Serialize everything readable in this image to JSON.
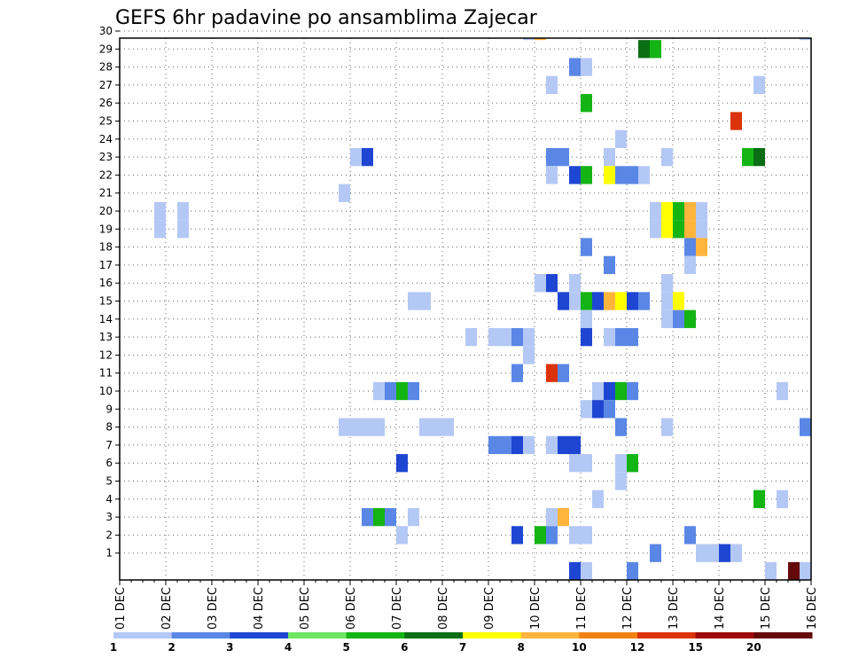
{
  "chart_data": {
    "type": "heatmap",
    "title": "GEFS 6hr padavine po ansamblima Zajecar",
    "x_tick_labels": [
      "01 DEC",
      "02 DEC",
      "03 DEC",
      "04 DEC",
      "05 DEC",
      "06 DEC",
      "07 DEC",
      "08 DEC",
      "09 DEC",
      "10 DEC",
      "11 DEC",
      "12 DEC",
      "13 DEC",
      "14 DEC",
      "15 DEC",
      "16 DEC"
    ],
    "y_tick_labels": [
      "1",
      "2",
      "3",
      "4",
      "5",
      "6",
      "7",
      "8",
      "9",
      "10",
      "11",
      "12",
      "13",
      "14",
      "15",
      "16",
      "17",
      "18",
      "19",
      "20",
      "21",
      "22",
      "23",
      "24",
      "25",
      "26",
      "27",
      "28",
      "29",
      "30"
    ],
    "ylim": [
      0,
      30
    ],
    "x_range_days": [
      0,
      15
    ],
    "grid": true,
    "colorbar": {
      "labels": [
        "1",
        "2",
        "3",
        "4",
        "5",
        "6",
        "7",
        "8",
        "10",
        "12",
        "15",
        "20"
      ],
      "colors": [
        "#b4c8f5",
        "#5a87e6",
        "#1e46d2",
        "#6ee664",
        "#14b414",
        "#0a6e14",
        "#ffff00",
        "#ffb43c",
        "#f08214",
        "#dc320a",
        "#a00a0a",
        "#640a0a"
      ]
    },
    "cell_width_days": 0.25,
    "cells": [
      {
        "x": 8.75,
        "y": 30,
        "v": 1
      },
      {
        "x": 9.0,
        "y": 30,
        "v": 8
      },
      {
        "x": 14.75,
        "y": 30,
        "v": 1
      },
      {
        "x": 11.25,
        "y": 29,
        "v": 6
      },
      {
        "x": 11.5,
        "y": 29,
        "v": 5
      },
      {
        "x": 9.75,
        "y": 28,
        "v": 2
      },
      {
        "x": 10.0,
        "y": 28,
        "v": 1
      },
      {
        "x": 9.25,
        "y": 27,
        "v": 1
      },
      {
        "x": 13.75,
        "y": 27,
        "v": 1
      },
      {
        "x": 10.0,
        "y": 26,
        "v": 5
      },
      {
        "x": 13.25,
        "y": 25,
        "v": 10
      },
      {
        "x": 10.75,
        "y": 24,
        "v": 1
      },
      {
        "x": 5.0,
        "y": 23,
        "v": 1
      },
      {
        "x": 5.25,
        "y": 23,
        "v": 3
      },
      {
        "x": 9.25,
        "y": 23,
        "v": 2
      },
      {
        "x": 9.5,
        "y": 23,
        "v": 2
      },
      {
        "x": 10.5,
        "y": 23,
        "v": 1
      },
      {
        "x": 11.75,
        "y": 23,
        "v": 1
      },
      {
        "x": 13.5,
        "y": 23,
        "v": 5
      },
      {
        "x": 13.75,
        "y": 23,
        "v": 6
      },
      {
        "x": 9.25,
        "y": 22,
        "v": 1
      },
      {
        "x": 9.75,
        "y": 22,
        "v": 3
      },
      {
        "x": 10.0,
        "y": 22,
        "v": 5
      },
      {
        "x": 10.5,
        "y": 22,
        "v": 7
      },
      {
        "x": 10.75,
        "y": 22,
        "v": 2
      },
      {
        "x": 11.0,
        "y": 22,
        "v": 2
      },
      {
        "x": 11.25,
        "y": 22,
        "v": 1
      },
      {
        "x": 4.75,
        "y": 21,
        "v": 1
      },
      {
        "x": 0.75,
        "y": 20,
        "v": 1
      },
      {
        "x": 1.25,
        "y": 20,
        "v": 1
      },
      {
        "x": 11.5,
        "y": 20,
        "v": 1
      },
      {
        "x": 11.75,
        "y": 20,
        "v": 7
      },
      {
        "x": 12.0,
        "y": 20,
        "v": 5
      },
      {
        "x": 12.25,
        "y": 20,
        "v": 8
      },
      {
        "x": 12.5,
        "y": 20,
        "v": 1
      },
      {
        "x": 0.75,
        "y": 19,
        "v": 1
      },
      {
        "x": 1.25,
        "y": 19,
        "v": 1
      },
      {
        "x": 11.5,
        "y": 19,
        "v": 1
      },
      {
        "x": 11.75,
        "y": 19,
        "v": 7
      },
      {
        "x": 12.0,
        "y": 19,
        "v": 5
      },
      {
        "x": 12.25,
        "y": 19,
        "v": 8
      },
      {
        "x": 12.5,
        "y": 19,
        "v": 1
      },
      {
        "x": 10.0,
        "y": 18,
        "v": 2
      },
      {
        "x": 12.25,
        "y": 18,
        "v": 2
      },
      {
        "x": 12.5,
        "y": 18,
        "v": 8
      },
      {
        "x": 10.5,
        "y": 17,
        "v": 2
      },
      {
        "x": 12.25,
        "y": 17,
        "v": 1
      },
      {
        "x": 9.0,
        "y": 16,
        "v": 1
      },
      {
        "x": 9.25,
        "y": 16,
        "v": 3
      },
      {
        "x": 9.75,
        "y": 16,
        "v": 1
      },
      {
        "x": 11.75,
        "y": 16,
        "v": 1
      },
      {
        "x": 6.25,
        "y": 15,
        "v": 1
      },
      {
        "x": 6.5,
        "y": 15,
        "v": 1
      },
      {
        "x": 9.5,
        "y": 15,
        "v": 3
      },
      {
        "x": 9.75,
        "y": 15,
        "v": 1
      },
      {
        "x": 10.0,
        "y": 15,
        "v": 5
      },
      {
        "x": 10.25,
        "y": 15,
        "v": 3
      },
      {
        "x": 10.5,
        "y": 15,
        "v": 8
      },
      {
        "x": 10.75,
        "y": 15,
        "v": 7
      },
      {
        "x": 11.0,
        "y": 15,
        "v": 3
      },
      {
        "x": 11.25,
        "y": 15,
        "v": 2
      },
      {
        "x": 11.75,
        "y": 15,
        "v": 1
      },
      {
        "x": 12.0,
        "y": 15,
        "v": 7
      },
      {
        "x": 10.0,
        "y": 14,
        "v": 1
      },
      {
        "x": 11.75,
        "y": 14,
        "v": 1
      },
      {
        "x": 12.0,
        "y": 14,
        "v": 2
      },
      {
        "x": 12.25,
        "y": 14,
        "v": 5
      },
      {
        "x": 7.5,
        "y": 13,
        "v": 1
      },
      {
        "x": 8.0,
        "y": 13,
        "v": 1
      },
      {
        "x": 8.25,
        "y": 13,
        "v": 1
      },
      {
        "x": 8.5,
        "y": 13,
        "v": 2
      },
      {
        "x": 8.75,
        "y": 13,
        "v": 1
      },
      {
        "x": 10.0,
        "y": 13,
        "v": 3
      },
      {
        "x": 10.5,
        "y": 13,
        "v": 1
      },
      {
        "x": 10.75,
        "y": 13,
        "v": 2
      },
      {
        "x": 11.0,
        "y": 13,
        "v": 2
      },
      {
        "x": 8.75,
        "y": 12,
        "v": 1
      },
      {
        "x": 8.5,
        "y": 11,
        "v": 2
      },
      {
        "x": 9.25,
        "y": 11,
        "v": 10
      },
      {
        "x": 9.5,
        "y": 11,
        "v": 2
      },
      {
        "x": 5.5,
        "y": 10,
        "v": 1
      },
      {
        "x": 5.75,
        "y": 10,
        "v": 2
      },
      {
        "x": 6.0,
        "y": 10,
        "v": 5
      },
      {
        "x": 6.25,
        "y": 10,
        "v": 2
      },
      {
        "x": 10.25,
        "y": 10,
        "v": 1
      },
      {
        "x": 10.5,
        "y": 10,
        "v": 3
      },
      {
        "x": 10.75,
        "y": 10,
        "v": 5
      },
      {
        "x": 11.0,
        "y": 10,
        "v": 2
      },
      {
        "x": 14.25,
        "y": 10,
        "v": 1
      },
      {
        "x": 10.0,
        "y": 9,
        "v": 1
      },
      {
        "x": 10.25,
        "y": 9,
        "v": 3
      },
      {
        "x": 10.5,
        "y": 9,
        "v": 2
      },
      {
        "x": 4.75,
        "y": 8,
        "v": 1
      },
      {
        "x": 5.0,
        "y": 8,
        "v": 1
      },
      {
        "x": 5.25,
        "y": 8,
        "v": 1
      },
      {
        "x": 5.5,
        "y": 8,
        "v": 1
      },
      {
        "x": 6.5,
        "y": 8,
        "v": 1
      },
      {
        "x": 6.75,
        "y": 8,
        "v": 1
      },
      {
        "x": 7.0,
        "y": 8,
        "v": 1
      },
      {
        "x": 10.75,
        "y": 8,
        "v": 2
      },
      {
        "x": 11.75,
        "y": 8,
        "v": 1
      },
      {
        "x": 14.75,
        "y": 8,
        "v": 2
      },
      {
        "x": 15.0,
        "y": 8,
        "v": 7
      },
      {
        "x": 8.0,
        "y": 7,
        "v": 2
      },
      {
        "x": 8.25,
        "y": 7,
        "v": 2
      },
      {
        "x": 8.5,
        "y": 7,
        "v": 3
      },
      {
        "x": 8.75,
        "y": 7,
        "v": 1
      },
      {
        "x": 9.25,
        "y": 7,
        "v": 1
      },
      {
        "x": 9.5,
        "y": 7,
        "v": 3
      },
      {
        "x": 9.75,
        "y": 7,
        "v": 3
      },
      {
        "x": 6.0,
        "y": 6,
        "v": 3
      },
      {
        "x": 9.75,
        "y": 6,
        "v": 1
      },
      {
        "x": 10.0,
        "y": 6,
        "v": 1
      },
      {
        "x": 10.75,
        "y": 6,
        "v": 1
      },
      {
        "x": 11.0,
        "y": 6,
        "v": 5
      },
      {
        "x": 10.75,
        "y": 5,
        "v": 1
      },
      {
        "x": 10.25,
        "y": 4,
        "v": 1
      },
      {
        "x": 13.75,
        "y": 4,
        "v": 5
      },
      {
        "x": 14.25,
        "y": 4,
        "v": 1
      },
      {
        "x": 5.25,
        "y": 3,
        "v": 2
      },
      {
        "x": 5.5,
        "y": 3,
        "v": 5
      },
      {
        "x": 5.75,
        "y": 3,
        "v": 2
      },
      {
        "x": 6.25,
        "y": 3,
        "v": 1
      },
      {
        "x": 9.25,
        "y": 3,
        "v": 1
      },
      {
        "x": 9.5,
        "y": 3,
        "v": 8
      },
      {
        "x": 6.0,
        "y": 2,
        "v": 1
      },
      {
        "x": 8.5,
        "y": 2,
        "v": 3
      },
      {
        "x": 9.0,
        "y": 2,
        "v": 5
      },
      {
        "x": 9.25,
        "y": 2,
        "v": 2
      },
      {
        "x": 9.75,
        "y": 2,
        "v": 1
      },
      {
        "x": 10.0,
        "y": 2,
        "v": 1
      },
      {
        "x": 12.25,
        "y": 2,
        "v": 2
      },
      {
        "x": 11.5,
        "y": 1,
        "v": 2
      },
      {
        "x": 12.5,
        "y": 1,
        "v": 1
      },
      {
        "x": 12.75,
        "y": 1,
        "v": 1
      },
      {
        "x": 13.0,
        "y": 1,
        "v": 3
      },
      {
        "x": 13.25,
        "y": 1,
        "v": 1
      },
      {
        "x": 9.75,
        "y": 0,
        "v": 3
      },
      {
        "x": 10.0,
        "y": 0,
        "v": 1
      },
      {
        "x": 11.0,
        "y": 0,
        "v": 2
      },
      {
        "x": 14.0,
        "y": 0,
        "v": 1
      },
      {
        "x": 14.5,
        "y": 0,
        "v": 12
      },
      {
        "x": 14.75,
        "y": 0,
        "v": 15
      }
    ]
  }
}
